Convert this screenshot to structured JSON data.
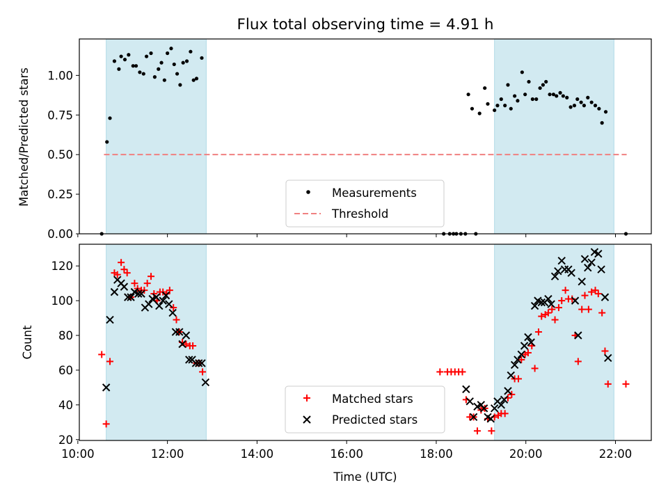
{
  "chart_data": [
    {
      "type": "scatter",
      "title": "Flux total observing time = 4.91 h",
      "xlabel": "",
      "ylabel": "Matched/Predicted stars",
      "xlim": [
        "10:02",
        "22:48"
      ],
      "ylim": [
        0,
        1.23
      ],
      "yticks": [
        "0.00",
        "0.25",
        "0.50",
        "0.75",
        "1.00"
      ],
      "shaded_intervals": [
        [
          "10:38",
          "12:52"
        ],
        [
          "19:18",
          "21:58"
        ]
      ],
      "threshold": {
        "name": "Threshold",
        "value": 0.5,
        "x_range": [
          "10:35",
          "22:15"
        ],
        "color": "#f08080"
      },
      "legend": {
        "position": "lower-center",
        "entries": [
          "Measurements",
          "Threshold"
        ]
      },
      "series": [
        {
          "name": "Measurements",
          "color": "#000000",
          "points": [
            [
              "10:32",
              0.0
            ],
            [
              "10:39",
              0.58
            ],
            [
              "10:43",
              0.73
            ],
            [
              "10:49",
              1.09
            ],
            [
              "10:55",
              1.04
            ],
            [
              "10:58",
              1.12
            ],
            [
              "11:03",
              1.1
            ],
            [
              "11:08",
              1.13
            ],
            [
              "11:14",
              1.06
            ],
            [
              "11:18",
              1.06
            ],
            [
              "11:23",
              1.02
            ],
            [
              "11:28",
              1.01
            ],
            [
              "11:32",
              1.12
            ],
            [
              "11:38",
              1.14
            ],
            [
              "11:43",
              0.99
            ],
            [
              "11:48",
              1.04
            ],
            [
              "11:52",
              1.08
            ],
            [
              "11:56",
              0.97
            ],
            [
              "12:00",
              1.14
            ],
            [
              "12:05",
              1.17
            ],
            [
              "12:09",
              1.07
            ],
            [
              "12:13",
              1.01
            ],
            [
              "12:17",
              0.94
            ],
            [
              "12:21",
              1.08
            ],
            [
              "12:26",
              1.09
            ],
            [
              "12:31",
              1.15
            ],
            [
              "12:35",
              0.97
            ],
            [
              "12:39",
              0.98
            ],
            [
              "12:46",
              1.11
            ],
            [
              "18:10",
              0.0
            ],
            [
              "18:18",
              0.0
            ],
            [
              "18:23",
              0.0
            ],
            [
              "18:27",
              0.0
            ],
            [
              "18:33",
              0.0
            ],
            [
              "18:39",
              0.0
            ],
            [
              "18:43",
              0.88
            ],
            [
              "18:48",
              0.79
            ],
            [
              "18:53",
              0.0
            ],
            [
              "18:58",
              0.76
            ],
            [
              "19:05",
              0.92
            ],
            [
              "19:09",
              0.82
            ],
            [
              "19:18",
              0.78
            ],
            [
              "19:22",
              0.81
            ],
            [
              "19:27",
              0.85
            ],
            [
              "19:32",
              0.81
            ],
            [
              "19:36",
              0.94
            ],
            [
              "19:40",
              0.79
            ],
            [
              "19:45",
              0.87
            ],
            [
              "19:49",
              0.84
            ],
            [
              "19:55",
              1.02
            ],
            [
              "19:59",
              0.88
            ],
            [
              "20:04",
              0.96
            ],
            [
              "20:09",
              0.85
            ],
            [
              "20:14",
              0.85
            ],
            [
              "20:19",
              0.92
            ],
            [
              "20:23",
              0.94
            ],
            [
              "20:27",
              0.96
            ],
            [
              "20:32",
              0.88
            ],
            [
              "20:37",
              0.88
            ],
            [
              "20:41",
              0.87
            ],
            [
              "20:46",
              0.89
            ],
            [
              "20:50",
              0.87
            ],
            [
              "20:55",
              0.86
            ],
            [
              "21:00",
              0.8
            ],
            [
              "21:05",
              0.81
            ],
            [
              "21:09",
              0.85
            ],
            [
              "21:14",
              0.83
            ],
            [
              "21:18",
              0.81
            ],
            [
              "21:23",
              0.86
            ],
            [
              "21:28",
              0.83
            ],
            [
              "21:33",
              0.81
            ],
            [
              "21:38",
              0.79
            ],
            [
              "21:42",
              0.7
            ],
            [
              "21:47",
              0.77
            ],
            [
              "22:14",
              0.0
            ]
          ]
        }
      ]
    },
    {
      "type": "scatter",
      "title": "",
      "xlabel": "Time (UTC)",
      "ylabel": "Count",
      "xlim": [
        "10:02",
        "22:48"
      ],
      "ylim": [
        19.5,
        132.5
      ],
      "xticks": [
        "10:00",
        "12:00",
        "14:00",
        "16:00",
        "18:00",
        "20:00",
        "22:00"
      ],
      "yticks": [
        20,
        40,
        60,
        80,
        100,
        120
      ],
      "shaded_intervals": [
        [
          "10:38",
          "12:52"
        ],
        [
          "19:18",
          "21:58"
        ]
      ],
      "legend": {
        "position": "lower-center",
        "entries": [
          "Matched stars",
          "Predicted stars"
        ]
      },
      "series": [
        {
          "name": "Matched stars",
          "marker": "plus",
          "color": "#ff0000",
          "points": [
            [
              "10:32",
              69
            ],
            [
              "10:38",
              29
            ],
            [
              "10:43",
              65
            ],
            [
              "10:49",
              116
            ],
            [
              "10:53",
              115
            ],
            [
              "10:58",
              122
            ],
            [
              "11:02",
              118
            ],
            [
              "11:06",
              116
            ],
            [
              "11:11",
              102
            ],
            [
              "11:16",
              110
            ],
            [
              "11:20",
              107
            ],
            [
              "11:25",
              106
            ],
            [
              "11:29",
              106
            ],
            [
              "11:33",
              110
            ],
            [
              "11:38",
              114
            ],
            [
              "11:42",
              104
            ],
            [
              "11:46",
              100
            ],
            [
              "11:50",
              105
            ],
            [
              "11:54",
              105
            ],
            [
              "11:59",
              104
            ],
            [
              "12:03",
              106
            ],
            [
              "12:08",
              96
            ],
            [
              "12:12",
              89
            ],
            [
              "12:16",
              82
            ],
            [
              "12:20",
              76
            ],
            [
              "12:25",
              75
            ],
            [
              "12:30",
              74
            ],
            [
              "12:34",
              74
            ],
            [
              "12:39",
              64
            ],
            [
              "12:43",
              64
            ],
            [
              "12:47",
              59
            ],
            [
              "18:05",
              59
            ],
            [
              "18:15",
              59
            ],
            [
              "18:20",
              59
            ],
            [
              "18:25",
              59
            ],
            [
              "18:30",
              59
            ],
            [
              "18:35",
              59
            ],
            [
              "18:40",
              43
            ],
            [
              "18:45",
              33
            ],
            [
              "18:50",
              33
            ],
            [
              "18:55",
              25
            ],
            [
              "19:00",
              37
            ],
            [
              "19:05",
              38
            ],
            [
              "19:09",
              32
            ],
            [
              "19:14",
              25
            ],
            [
              "19:18",
              33
            ],
            [
              "19:23",
              34
            ],
            [
              "19:27",
              35
            ],
            [
              "19:32",
              35
            ],
            [
              "19:36",
              44
            ],
            [
              "19:41",
              46
            ],
            [
              "19:45",
              55
            ],
            [
              "19:50",
              55
            ],
            [
              "19:54",
              66
            ],
            [
              "19:59",
              69
            ],
            [
              "20:03",
              70
            ],
            [
              "20:08",
              74
            ],
            [
              "20:12",
              61
            ],
            [
              "20:17",
              82
            ],
            [
              "20:21",
              91
            ],
            [
              "20:26",
              92
            ],
            [
              "20:30",
              93
            ],
            [
              "20:35",
              95
            ],
            [
              "20:39",
              89
            ],
            [
              "20:44",
              96
            ],
            [
              "20:48",
              100
            ],
            [
              "20:53",
              106
            ],
            [
              "20:57",
              101
            ],
            [
              "21:02",
              101
            ],
            [
              "21:06",
              80
            ],
            [
              "21:10",
              65
            ],
            [
              "21:15",
              95
            ],
            [
              "21:19",
              103
            ],
            [
              "21:24",
              95
            ],
            [
              "21:28",
              105
            ],
            [
              "21:33",
              106
            ],
            [
              "21:37",
              104
            ],
            [
              "21:42",
              93
            ],
            [
              "21:46",
              71
            ],
            [
              "21:50",
              52
            ],
            [
              "22:14",
              52
            ]
          ]
        },
        {
          "name": "Predicted stars",
          "marker": "x",
          "color": "#000000",
          "points": [
            [
              "10:38",
              50
            ],
            [
              "10:43",
              89
            ],
            [
              "10:49",
              105
            ],
            [
              "10:53",
              112
            ],
            [
              "10:58",
              110
            ],
            [
              "11:02",
              108
            ],
            [
              "11:07",
              102
            ],
            [
              "11:11",
              102
            ],
            [
              "11:16",
              105
            ],
            [
              "11:21",
              104
            ],
            [
              "11:25",
              104
            ],
            [
              "11:30",
              96
            ],
            [
              "11:35",
              98
            ],
            [
              "11:40",
              101
            ],
            [
              "11:45",
              102
            ],
            [
              "11:49",
              97
            ],
            [
              "11:54",
              100
            ],
            [
              "11:58",
              103
            ],
            [
              "12:02",
              98
            ],
            [
              "12:07",
              93
            ],
            [
              "12:11",
              82
            ],
            [
              "12:16",
              82
            ],
            [
              "12:20",
              75
            ],
            [
              "12:25",
              80
            ],
            [
              "12:29",
              66
            ],
            [
              "12:33",
              66
            ],
            [
              "12:38",
              64
            ],
            [
              "12:42",
              64
            ],
            [
              "12:46",
              64
            ],
            [
              "12:51",
              53
            ],
            [
              "18:40",
              49
            ],
            [
              "18:45",
              42
            ],
            [
              "18:50",
              33
            ],
            [
              "18:55",
              39
            ],
            [
              "19:00",
              40
            ],
            [
              "19:04",
              38
            ],
            [
              "19:09",
              33
            ],
            [
              "19:13",
              32
            ],
            [
              "19:18",
              38
            ],
            [
              "19:22",
              42
            ],
            [
              "19:27",
              40
            ],
            [
              "19:31",
              43
            ],
            [
              "19:36",
              48
            ],
            [
              "19:40",
              57
            ],
            [
              "19:45",
              63
            ],
            [
              "19:49",
              66
            ],
            [
              "19:54",
              69
            ],
            [
              "19:58",
              74
            ],
            [
              "20:03",
              79
            ],
            [
              "20:07",
              76
            ],
            [
              "20:12",
              97
            ],
            [
              "20:16",
              100
            ],
            [
              "20:21",
              99
            ],
            [
              "20:25",
              99
            ],
            [
              "20:30",
              101
            ],
            [
              "20:34",
              98
            ],
            [
              "20:39",
              114
            ],
            [
              "20:43",
              117
            ],
            [
              "20:48",
              123
            ],
            [
              "20:52",
              118
            ],
            [
              "20:57",
              118
            ],
            [
              "21:01",
              116
            ],
            [
              "21:06",
              100
            ],
            [
              "21:10",
              80
            ],
            [
              "21:15",
              111
            ],
            [
              "21:19",
              124
            ],
            [
              "21:23",
              119
            ],
            [
              "21:28",
              122
            ],
            [
              "21:32",
              128
            ],
            [
              "21:37",
              127
            ],
            [
              "21:41",
              118
            ],
            [
              "21:46",
              102
            ],
            [
              "21:50",
              67
            ]
          ]
        }
      ]
    }
  ],
  "colors": {
    "shade": "#add8e6",
    "matched": "#ff0000",
    "predicted": "#000000",
    "threshold": "#f08080"
  }
}
